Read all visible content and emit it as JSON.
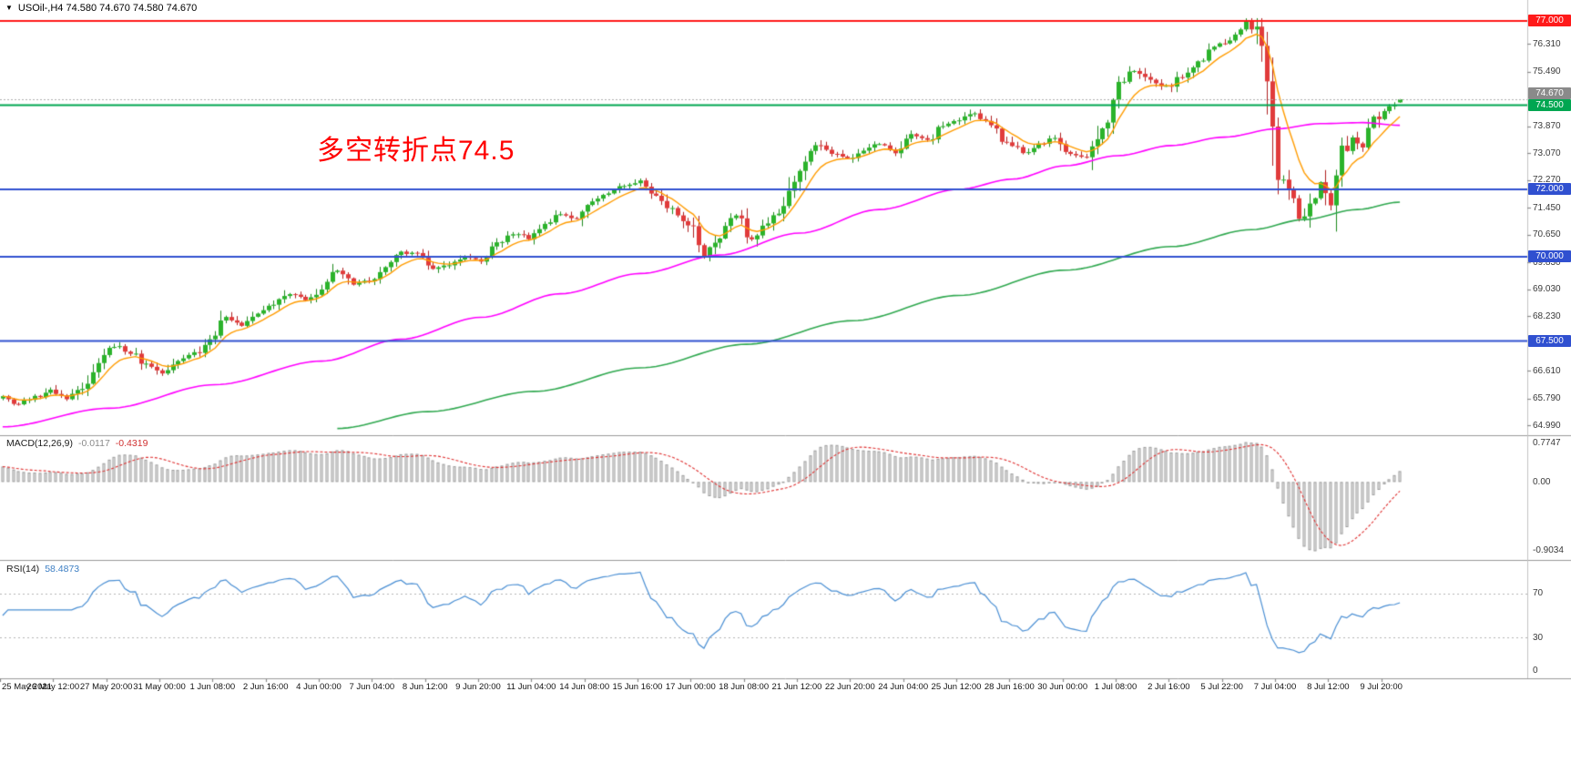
{
  "header": {
    "collapse_icon": "▼",
    "text": "USOil-,H4 74.580 74.670 74.580 74.670"
  },
  "annotation": {
    "text": "多空转折点74.5",
    "color": "#ff0000"
  },
  "chart_data": {
    "type": "candlestick",
    "symbol": "USOil-",
    "timeframe": "H4",
    "ohlc_display": {
      "open": "74.580",
      "high": "74.670",
      "low": "74.580",
      "close": "74.670"
    },
    "num_candles": 264,
    "candles_per_label": 10,
    "x_labels": [
      "25 May 2021",
      "26 May 12:00",
      "27 May 20:00",
      "31 May 00:00",
      "1 Jun 08:00",
      "2 Jun 16:00",
      "4 Jun 00:00",
      "7 Jun 04:00",
      "8 Jun 12:00",
      "9 Jun 20:00",
      "11 Jun 04:00",
      "14 Jun 08:00",
      "15 Jun 16:00",
      "17 Jun 00:00",
      "18 Jun 08:00",
      "21 Jun 12:00",
      "22 Jun 20:00",
      "24 Jun 04:00",
      "25 Jun 12:00",
      "28 Jun 16:00",
      "30 Jun 00:00",
      "1 Jul 08:00",
      "2 Jul 16:00",
      "5 Jul 22:00",
      "7 Jul 04:00",
      "8 Jul 12:00",
      "9 Jul 20:00"
    ],
    "y_axis": {
      "price_top": 77.62,
      "price_bottom": 64.7,
      "ticks": [
        {
          "v": 76.31,
          "t": "76.310"
        },
        {
          "v": 75.49,
          "t": "75.490"
        },
        {
          "v": 73.87,
          "t": "73.870"
        },
        {
          "v": 73.07,
          "t": "73.070"
        },
        {
          "v": 72.27,
          "t": "72.270"
        },
        {
          "v": 71.45,
          "t": "71.450"
        },
        {
          "v": 70.65,
          "t": "70.650"
        },
        {
          "v": 69.83,
          "t": "69.830"
        },
        {
          "v": 69.03,
          "t": "69.030"
        },
        {
          "v": 68.23,
          "t": "68.230"
        },
        {
          "v": 66.61,
          "t": "66.610"
        },
        {
          "v": 65.79,
          "t": "65.790"
        },
        {
          "v": 64.99,
          "t": "64.990"
        }
      ]
    },
    "hlines": [
      {
        "price": 77.0,
        "label": "77.000",
        "color": "#ff1a1a"
      },
      {
        "price": 74.5,
        "label": "74.500",
        "color": "#00a651"
      },
      {
        "price": 72.0,
        "label": "72.000",
        "color": "#3050d0"
      },
      {
        "price": 70.0,
        "label": "70.000",
        "color": "#3050d0"
      },
      {
        "price": 67.5,
        "label": "67.500",
        "color": "#3050d0"
      }
    ],
    "current_price": {
      "value": 74.67,
      "label": "74.670",
      "box_color": "#8a8a8a",
      "line_color": "#b0b0b0"
    },
    "candle_colors": {
      "bull": "#2bb32b",
      "bear": "#e13b3b",
      "bull_border": "#1d8a1d",
      "bear_border": "#b02020"
    },
    "price_anchors": [
      [
        0,
        65.85
      ],
      [
        3,
        65.62
      ],
      [
        6,
        65.82
      ],
      [
        9,
        66.05
      ],
      [
        12,
        65.78
      ],
      [
        15,
        66.12
      ],
      [
        18,
        66.9
      ],
      [
        21,
        67.35
      ],
      [
        24,
        67.18
      ],
      [
        27,
        66.8
      ],
      [
        30,
        66.55
      ],
      [
        33,
        66.9
      ],
      [
        36,
        67.1
      ],
      [
        39,
        67.5
      ],
      [
        42,
        68.2
      ],
      [
        45,
        67.95
      ],
      [
        48,
        68.3
      ],
      [
        51,
        68.6
      ],
      [
        54,
        68.9
      ],
      [
        57,
        68.7
      ],
      [
        60,
        69.05
      ],
      [
        63,
        69.55
      ],
      [
        66,
        69.2
      ],
      [
        69,
        69.28
      ],
      [
        72,
        69.7
      ],
      [
        75,
        70.1
      ],
      [
        78,
        70.15
      ],
      [
        81,
        69.6
      ],
      [
        84,
        69.78
      ],
      [
        87,
        70.0
      ],
      [
        90,
        69.9
      ],
      [
        93,
        70.35
      ],
      [
        96,
        70.7
      ],
      [
        99,
        70.55
      ],
      [
        102,
        70.95
      ],
      [
        105,
        71.25
      ],
      [
        108,
        71.1
      ],
      [
        111,
        71.6
      ],
      [
        114,
        71.9
      ],
      [
        117,
        72.1
      ],
      [
        120,
        72.25
      ],
      [
        123,
        71.85
      ],
      [
        126,
        71.4
      ],
      [
        129,
        70.95
      ],
      [
        132,
        70.05
      ],
      [
        135,
        70.6
      ],
      [
        138,
        71.25
      ],
      [
        141,
        70.55
      ],
      [
        144,
        71.0
      ],
      [
        147,
        71.5
      ],
      [
        150,
        72.7
      ],
      [
        153,
        73.3
      ],
      [
        156,
        73.05
      ],
      [
        159,
        72.9
      ],
      [
        162,
        73.2
      ],
      [
        165,
        73.35
      ],
      [
        168,
        73.1
      ],
      [
        171,
        73.6
      ],
      [
        174,
        73.45
      ],
      [
        177,
        73.85
      ],
      [
        180,
        74.05
      ],
      [
        183,
        74.25
      ],
      [
        186,
        73.85
      ],
      [
        189,
        73.4
      ],
      [
        192,
        73.1
      ],
      [
        195,
        73.3
      ],
      [
        198,
        73.55
      ],
      [
        201,
        73.1
      ],
      [
        204,
        72.95
      ],
      [
        207,
        73.9
      ],
      [
        210,
        75.15
      ],
      [
        213,
        75.5
      ],
      [
        216,
        75.2
      ],
      [
        219,
        75.05
      ],
      [
        222,
        75.35
      ],
      [
        225,
        75.8
      ],
      [
        228,
        76.2
      ],
      [
        231,
        76.45
      ],
      [
        234,
        77.0
      ],
      [
        236,
        76.7
      ],
      [
        238,
        75.2
      ],
      [
        240,
        72.6
      ],
      [
        242,
        71.9
      ],
      [
        244,
        71.1
      ],
      [
        246,
        71.55
      ],
      [
        248,
        72.2
      ],
      [
        250,
        71.55
      ],
      [
        252,
        73.0
      ],
      [
        254,
        73.6
      ],
      [
        256,
        73.3
      ],
      [
        258,
        74.0
      ],
      [
        260,
        74.4
      ],
      [
        262,
        74.55
      ],
      [
        263,
        74.67
      ]
    ],
    "moving_averages": {
      "fast": {
        "color": "#ff9c00",
        "type": "ema",
        "period": 8
      },
      "medium": {
        "color": "#ff00ff",
        "anchors": [
          [
            0,
            64.95
          ],
          [
            20,
            65.5
          ],
          [
            40,
            66.2
          ],
          [
            60,
            66.9
          ],
          [
            75,
            67.55
          ],
          [
            90,
            68.2
          ],
          [
            105,
            68.9
          ],
          [
            120,
            69.5
          ],
          [
            135,
            70.05
          ],
          [
            150,
            70.7
          ],
          [
            165,
            71.4
          ],
          [
            180,
            72.0
          ],
          [
            190,
            72.3
          ],
          [
            200,
            72.7
          ],
          [
            210,
            73.0
          ],
          [
            220,
            73.3
          ],
          [
            230,
            73.55
          ],
          [
            240,
            73.8
          ],
          [
            248,
            73.95
          ],
          [
            256,
            73.98
          ],
          [
            263,
            73.9
          ]
        ]
      },
      "slow": {
        "color": "#2fa84f",
        "anchors": [
          [
            63,
            64.9
          ],
          [
            80,
            65.4
          ],
          [
            100,
            66.0
          ],
          [
            120,
            66.7
          ],
          [
            140,
            67.4
          ],
          [
            160,
            68.1
          ],
          [
            180,
            68.85
          ],
          [
            200,
            69.6
          ],
          [
            220,
            70.3
          ],
          [
            235,
            70.8
          ],
          [
            245,
            71.1
          ],
          [
            255,
            71.4
          ],
          [
            263,
            71.62
          ]
        ]
      }
    },
    "macd": {
      "name": "MACD(12,26,9)",
      "value": "-0.0117",
      "signal": "-0.4319",
      "fast": 12,
      "slow": 26,
      "signal_period": 9,
      "ticks": {
        "max": "0.7747",
        "zero": "0.00",
        "min": "-0.9034"
      },
      "bar_fill": "#f0f0f0",
      "bar_border": "#9e9e9e",
      "signal_color": "#e03030"
    },
    "rsi": {
      "name": "RSI(14)",
      "value": "58.4873",
      "period": 14,
      "line_color": "#4a8fd4",
      "levels": [
        {
          "v": 70,
          "label": "70"
        },
        {
          "v": 30,
          "label": "30"
        }
      ],
      "zero_label": "0"
    }
  }
}
